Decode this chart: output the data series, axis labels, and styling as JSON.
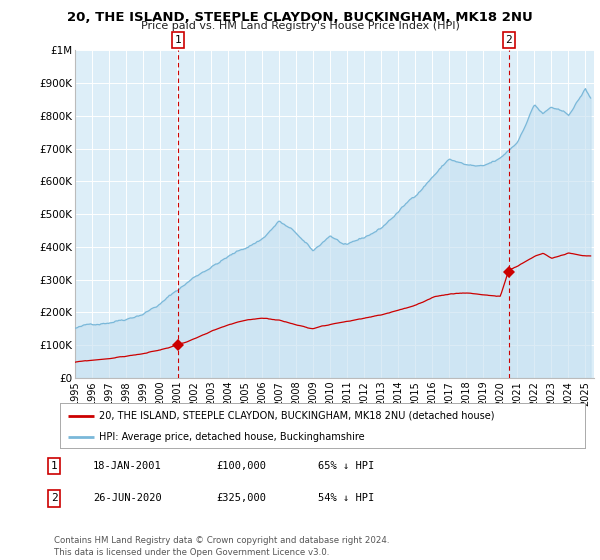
{
  "title": "20, THE ISLAND, STEEPLE CLAYDON, BUCKINGHAM, MK18 2NU",
  "subtitle": "Price paid vs. HM Land Registry's House Price Index (HPI)",
  "x_start_year": 1995,
  "x_end_year": 2025,
  "ylim": [
    0,
    1000000
  ],
  "yticks": [
    0,
    100000,
    200000,
    300000,
    400000,
    500000,
    600000,
    700000,
    800000,
    900000,
    1000000
  ],
  "ytick_labels": [
    "£0",
    "£100K",
    "£200K",
    "£300K",
    "£400K",
    "£500K",
    "£600K",
    "£700K",
    "£800K",
    "£900K",
    "£1M"
  ],
  "sale1_year": 2001.05,
  "sale1_price": 100000,
  "sale1_label": "1",
  "sale2_year": 2020.49,
  "sale2_price": 325000,
  "sale2_label": "2",
  "hpi_color": "#7ab8d9",
  "hpi_fill_color": "#c5dff0",
  "price_color": "#cc0000",
  "bg_color": "#ddeef8",
  "grid_color": "#ffffff",
  "dashed_line_color": "#cc0000",
  "legend_line1": "20, THE ISLAND, STEEPLE CLAYDON, BUCKINGHAM, MK18 2NU (detached house)",
  "legend_line2": "HPI: Average price, detached house, Buckinghamshire",
  "footnote": "Contains HM Land Registry data © Crown copyright and database right 2024.\nThis data is licensed under the Open Government Licence v3.0."
}
